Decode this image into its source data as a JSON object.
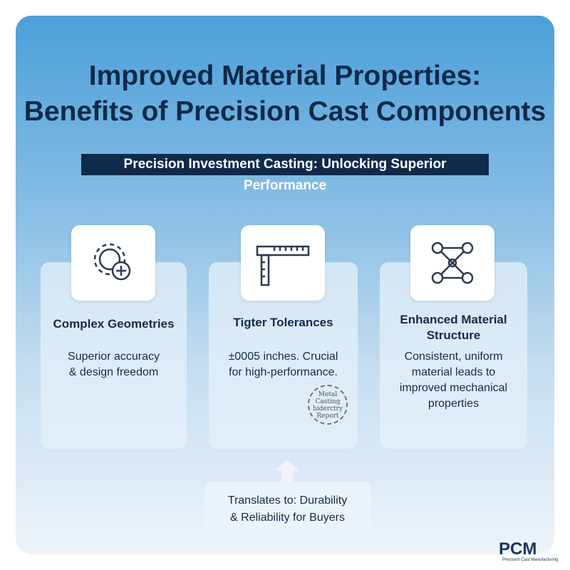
{
  "title": {
    "line1": "Improved Material Properties:",
    "line2": "Benefits of Precision Cast Components"
  },
  "subtitle": "Precision Investment Casting: Unlocking Superior Performance",
  "cards": [
    {
      "heading": "Complex Geometries",
      "body1": "Superior accuracy",
      "body2": "& design freedom",
      "icon": "gear-plus-icon"
    },
    {
      "heading": "Tigter Tolerances",
      "body1": "±0005 inches. Crucial",
      "body2": "for high-performance.",
      "icon": "ruler-square-icon"
    },
    {
      "heading1": "Enhanced Material",
      "heading2": "Structure",
      "body1": "Consistent, uniform",
      "body2": "material leads to",
      "body3": "improved mechanical",
      "body4": "properties",
      "icon": "network-icon"
    }
  ],
  "seal": {
    "l1": "Metal",
    "l2": "Casting",
    "l3": "hiderctry",
    "l4": "Report"
  },
  "bottom": {
    "l1": "Translates to: Durability",
    "l2": "& Reliability for Buyers"
  },
  "logo": {
    "name": "PCM",
    "tagline": "Precision Cast Manufacturing"
  }
}
